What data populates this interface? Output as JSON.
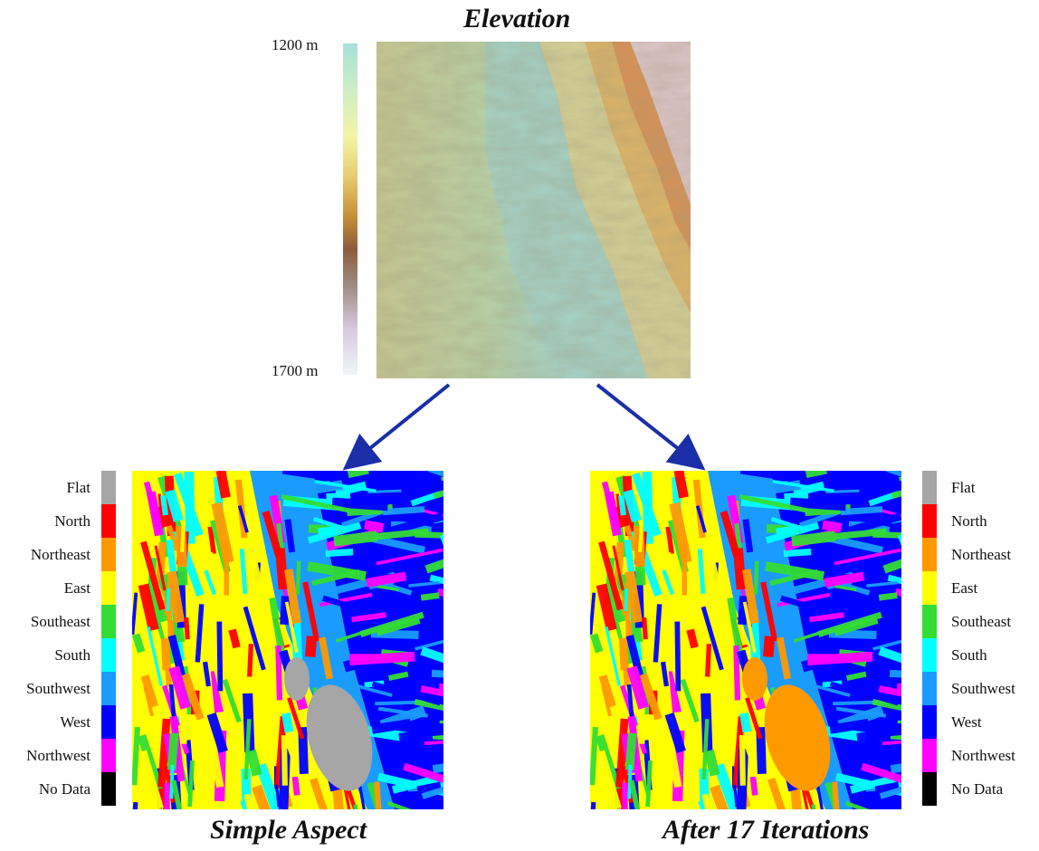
{
  "elevation": {
    "title": "Elevation",
    "scale_top_label": "1200 m",
    "scale_bottom_label": "1700 m"
  },
  "left_panel": {
    "title": "Simple Aspect"
  },
  "right_panel": {
    "title": "After 17 Iterations"
  },
  "legend": [
    {
      "label": "Flat",
      "color": "#a6a6a6"
    },
    {
      "label": "North",
      "color": "#ff0000"
    },
    {
      "label": "Northeast",
      "color": "#ff9900"
    },
    {
      "label": "East",
      "color": "#ffff00"
    },
    {
      "label": "Southeast",
      "color": "#33dd33"
    },
    {
      "label": "South",
      "color": "#00ffff"
    },
    {
      "label": "Southwest",
      "color": "#1a9cff"
    },
    {
      "label": "West",
      "color": "#0000ff"
    },
    {
      "label": "Northwest",
      "color": "#ff00ff"
    },
    {
      "label": "No Data",
      "color": "#000000"
    }
  ],
  "colors": {
    "arrow": "#1a2ea8"
  }
}
